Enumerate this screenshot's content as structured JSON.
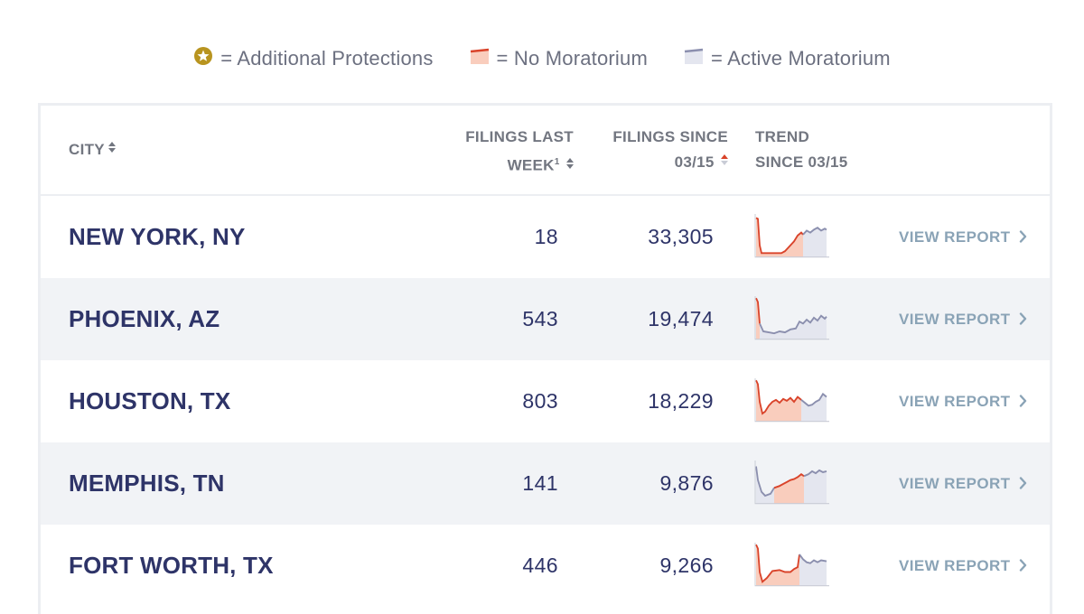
{
  "legend": {
    "additional_protections": "= Additional Protections",
    "no_moratorium": "= No Moratorium",
    "active_moratorium": "= Active Moratorium",
    "icons": [
      "star-circle-icon",
      "no-moratorium-swatch",
      "active-moratorium-swatch"
    ]
  },
  "colors": {
    "text_primary": "#2e3468",
    "header_text": "#727680",
    "link": "#8aa3b6",
    "no_moratorium_line": "#d9432a",
    "no_moratorium_fill": "#f9cdbd",
    "active_moratorium_line": "#8b8fae",
    "active_moratorium_fill": "#e4e6ef",
    "star_gold": "#b8941f",
    "row_alt_bg": "#f1f3f6"
  },
  "table": {
    "headers": {
      "city": "CITY",
      "filings_last_week_line1": "FILINGS LAST",
      "filings_last_week_line2": "WEEK",
      "filings_last_week_sup": "1",
      "filings_since_line1": "FILINGS SINCE",
      "filings_since_line2": "03/15",
      "trend_line1": "TREND",
      "trend_line2": "SINCE 03/15"
    },
    "sort": {
      "active_column": "filings_since",
      "direction": "descending"
    },
    "rows": [
      {
        "city": "NEW YORK, NY",
        "filings_last_week": "18",
        "filings_since": "33,305",
        "link": "VIEW REPORT"
      },
      {
        "city": "PHOENIX, AZ",
        "filings_last_week": "543",
        "filings_since": "19,474",
        "link": "VIEW REPORT"
      },
      {
        "city": "HOUSTON, TX",
        "filings_last_week": "803",
        "filings_since": "18,229",
        "link": "VIEW REPORT"
      },
      {
        "city": "MEMPHIS, TN",
        "filings_last_week": "141",
        "filings_since": "9,876",
        "link": "VIEW REPORT"
      },
      {
        "city": "FORT WORTH, TX",
        "filings_last_week": "446",
        "filings_since": "9,266",
        "link": "VIEW REPORT"
      }
    ]
  }
}
